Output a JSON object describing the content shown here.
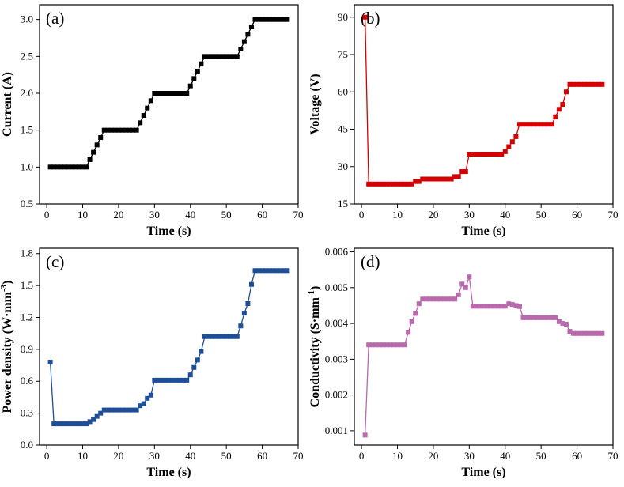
{
  "chart_data": [
    {
      "type": "line",
      "panel_label": "(a)",
      "xlabel": "Time (s)",
      "ylabel": "Current (A)",
      "xlim": [
        -2,
        70
      ],
      "ylim": [
        0.5,
        3.2
      ],
      "xticks": [
        0,
        10,
        20,
        30,
        40,
        50,
        60,
        70
      ],
      "yticks": [
        0.5,
        1.0,
        1.5,
        2.0,
        2.5,
        3.0
      ],
      "ytick_labels": [
        "0.5",
        "1.0",
        "1.5",
        "2.0",
        "2.5",
        "3.0"
      ],
      "color": "#000000",
      "series": [
        {
          "x": [
            1,
            2,
            3,
            4,
            5,
            6,
            7,
            8,
            9,
            10,
            11,
            12,
            13,
            14,
            15,
            16,
            17,
            18,
            19,
            20,
            21,
            22,
            23,
            24,
            25,
            26,
            27,
            28,
            29,
            30,
            31,
            32,
            33,
            34,
            35,
            36,
            37,
            38,
            39,
            40,
            41,
            42,
            43,
            44,
            45,
            46,
            47,
            48,
            49,
            50,
            51,
            52,
            53,
            54,
            55,
            56,
            57,
            58,
            59,
            60,
            61,
            62,
            63,
            64,
            65,
            66,
            67
          ],
          "y": [
            1.0,
            1.0,
            1.0,
            1.0,
            1.0,
            1.0,
            1.0,
            1.0,
            1.0,
            1.0,
            1.0,
            1.1,
            1.2,
            1.3,
            1.4,
            1.5,
            1.5,
            1.5,
            1.5,
            1.5,
            1.5,
            1.5,
            1.5,
            1.5,
            1.5,
            1.6,
            1.7,
            1.8,
            1.9,
            2.0,
            2.0,
            2.0,
            2.0,
            2.0,
            2.0,
            2.0,
            2.0,
            2.0,
            2.0,
            2.1,
            2.2,
            2.3,
            2.4,
            2.5,
            2.5,
            2.5,
            2.5,
            2.5,
            2.5,
            2.5,
            2.5,
            2.5,
            2.5,
            2.6,
            2.7,
            2.8,
            2.9,
            3.0,
            3.0,
            3.0,
            3.0,
            3.0,
            3.0,
            3.0,
            3.0,
            3.0,
            3.0
          ]
        }
      ]
    },
    {
      "type": "line",
      "panel_label": "(b)",
      "xlabel": "Time (s)",
      "ylabel": "Voltage (V)",
      "xlim": [
        -2,
        70
      ],
      "ylim": [
        15,
        95
      ],
      "xticks": [
        0,
        10,
        20,
        30,
        40,
        50,
        60,
        70
      ],
      "yticks": [
        15,
        30,
        45,
        60,
        75,
        90
      ],
      "ytick_labels": [
        "15",
        "30",
        "45",
        "60",
        "75",
        "90"
      ],
      "color": "#d40000",
      "series": [
        {
          "x": [
            1,
            2,
            3,
            4,
            5,
            6,
            7,
            8,
            9,
            10,
            11,
            12,
            13,
            14,
            15,
            16,
            17,
            18,
            19,
            20,
            21,
            22,
            23,
            24,
            25,
            26,
            27,
            28,
            29,
            30,
            31,
            32,
            33,
            34,
            35,
            36,
            37,
            38,
            39,
            40,
            41,
            42,
            43,
            44,
            45,
            46,
            47,
            48,
            49,
            50,
            51,
            52,
            53,
            54,
            55,
            56,
            57,
            58,
            59,
            60,
            61,
            62,
            63,
            64,
            65,
            66,
            67
          ],
          "y": [
            90,
            23,
            23,
            23,
            23,
            23,
            23,
            23,
            23,
            23,
            23,
            23,
            23,
            23,
            24,
            24,
            25,
            25,
            25,
            25,
            25,
            25,
            25,
            25,
            25,
            26,
            26,
            28,
            28,
            35,
            35,
            35,
            35,
            35,
            35,
            35,
            35,
            35,
            35,
            36,
            38,
            40,
            42,
            47,
            47,
            47,
            47,
            47,
            47,
            47,
            47,
            47,
            47,
            50,
            53,
            55,
            60,
            63,
            63,
            63,
            63,
            63,
            63,
            63,
            63,
            63,
            63
          ]
        }
      ]
    },
    {
      "type": "line",
      "panel_label": "(c)",
      "xlabel": "Time (s)",
      "ylabel": "Power density (W·mm",
      "ylabel_sup": "-3",
      "ylabel_suffix": ")",
      "xlim": [
        -2,
        70
      ],
      "ylim": [
        0.0,
        1.85
      ],
      "xticks": [
        0,
        10,
        20,
        30,
        40,
        50,
        60,
        70
      ],
      "yticks": [
        0.0,
        0.3,
        0.6,
        0.9,
        1.2,
        1.5,
        1.8
      ],
      "ytick_labels": [
        "0.0",
        "0.3",
        "0.6",
        "0.9",
        "1.2",
        "1.5",
        "1.8"
      ],
      "color": "#1f4e99",
      "series": [
        {
          "x": [
            1,
            2,
            3,
            4,
            5,
            6,
            7,
            8,
            9,
            10,
            11,
            12,
            13,
            14,
            15,
            16,
            17,
            18,
            19,
            20,
            21,
            22,
            23,
            24,
            25,
            26,
            27,
            28,
            29,
            30,
            31,
            32,
            33,
            34,
            35,
            36,
            37,
            38,
            39,
            40,
            41,
            42,
            43,
            44,
            45,
            46,
            47,
            48,
            49,
            50,
            51,
            52,
            53,
            54,
            55,
            56,
            57,
            58,
            59,
            60,
            61,
            62,
            63,
            64,
            65,
            66,
            67
          ],
          "y": [
            0.78,
            0.2,
            0.2,
            0.2,
            0.2,
            0.2,
            0.2,
            0.2,
            0.2,
            0.2,
            0.2,
            0.22,
            0.24,
            0.27,
            0.3,
            0.33,
            0.33,
            0.33,
            0.33,
            0.33,
            0.33,
            0.33,
            0.33,
            0.33,
            0.33,
            0.37,
            0.39,
            0.44,
            0.47,
            0.61,
            0.61,
            0.61,
            0.61,
            0.61,
            0.61,
            0.61,
            0.61,
            0.61,
            0.61,
            0.66,
            0.73,
            0.8,
            0.88,
            1.02,
            1.02,
            1.02,
            1.02,
            1.02,
            1.02,
            1.02,
            1.02,
            1.02,
            1.02,
            1.12,
            1.24,
            1.33,
            1.51,
            1.64,
            1.64,
            1.64,
            1.64,
            1.64,
            1.64,
            1.64,
            1.64,
            1.64,
            1.64
          ]
        }
      ]
    },
    {
      "type": "line",
      "panel_label": "(d)",
      "xlabel": "Time (s)",
      "ylabel": "Conductivity (S·mm",
      "ylabel_sup": "-1",
      "ylabel_suffix": ")",
      "xlim": [
        -2,
        70
      ],
      "ylim": [
        0.0006,
        0.0061
      ],
      "xticks": [
        0,
        10,
        20,
        30,
        40,
        50,
        60,
        70
      ],
      "yticks": [
        0.001,
        0.002,
        0.003,
        0.004,
        0.005,
        0.006
      ],
      "ytick_labels": [
        "0.001",
        "0.002",
        "0.003",
        "0.004",
        "0.005",
        "0.006"
      ],
      "color": "#b86aac",
      "series": [
        {
          "x": [
            1,
            2,
            3,
            4,
            5,
            6,
            7,
            8,
            9,
            10,
            11,
            12,
            13,
            14,
            15,
            16,
            17,
            18,
            19,
            20,
            21,
            22,
            23,
            24,
            25,
            26,
            27,
            28,
            29,
            30,
            31,
            32,
            33,
            34,
            35,
            36,
            37,
            38,
            39,
            40,
            41,
            42,
            43,
            44,
            45,
            46,
            47,
            48,
            49,
            50,
            51,
            52,
            53,
            54,
            55,
            56,
            57,
            58,
            59,
            60,
            61,
            62,
            63,
            64,
            65,
            66,
            67
          ],
          "y": [
            0.00088,
            0.0034,
            0.0034,
            0.0034,
            0.0034,
            0.0034,
            0.0034,
            0.0034,
            0.0034,
            0.0034,
            0.0034,
            0.0034,
            0.00375,
            0.00405,
            0.00428,
            0.00455,
            0.00468,
            0.00468,
            0.00468,
            0.00468,
            0.00468,
            0.00468,
            0.00468,
            0.00468,
            0.00468,
            0.00468,
            0.0048,
            0.0051,
            0.005,
            0.0053,
            0.00448,
            0.00448,
            0.00448,
            0.00448,
            0.00448,
            0.00448,
            0.00448,
            0.00448,
            0.00448,
            0.00448,
            0.00455,
            0.00453,
            0.0045,
            0.00447,
            0.00416,
            0.00416,
            0.00416,
            0.00416,
            0.00416,
            0.00416,
            0.00416,
            0.00416,
            0.00416,
            0.00416,
            0.00405,
            0.004,
            0.00398,
            0.00378,
            0.00372,
            0.00372,
            0.00372,
            0.00372,
            0.00372,
            0.00372,
            0.00372,
            0.00372,
            0.00372
          ]
        }
      ]
    }
  ]
}
